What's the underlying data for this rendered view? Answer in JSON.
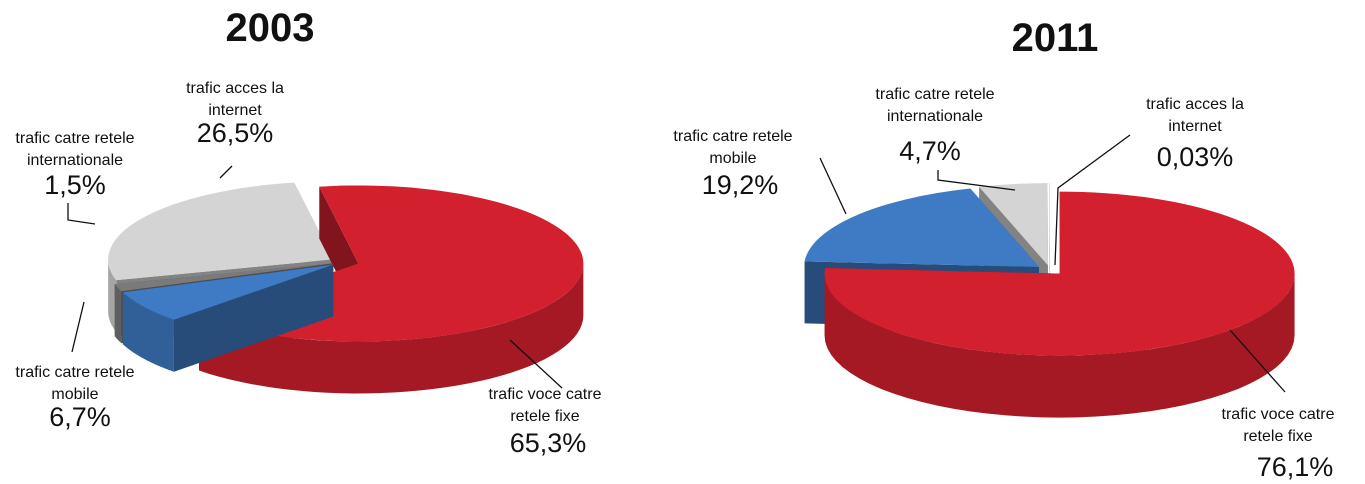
{
  "chart_data": [
    {
      "type": "pie",
      "title": "2003",
      "categories": [
        "trafic voce catre retele fixe",
        "trafic catre retele mobile",
        "trafic catre retele internationale",
        "trafic acces la internet"
      ],
      "values": [
        65.3,
        6.7,
        1.5,
        26.5
      ],
      "value_labels": [
        "65,3%",
        "6,7%",
        "1,5%",
        "26,5%"
      ],
      "colors": [
        "#d2202e",
        "#3f7bc4",
        "#7a7a7a",
        "#d4d4d4"
      ]
    },
    {
      "type": "pie",
      "title": "2011",
      "categories": [
        "trafic voce catre retele fixe",
        "trafic catre retele mobile",
        "trafic catre retele internationale",
        "trafic acces la internet"
      ],
      "values": [
        76.1,
        19.2,
        4.7,
        0.03
      ],
      "value_labels": [
        "76,1%",
        "19,2%",
        "4,7%",
        "0,03%"
      ],
      "colors": [
        "#d2202e",
        "#3f7bc4",
        "#d4d4d4",
        "#bdbdbd"
      ]
    }
  ]
}
